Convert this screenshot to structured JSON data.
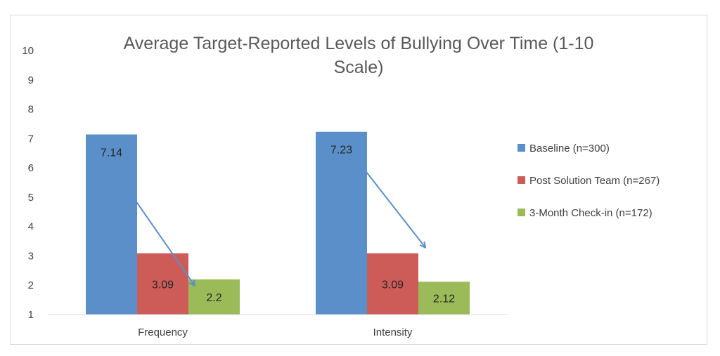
{
  "chart_data": {
    "type": "bar",
    "title_lines": [
      "Average Target-Reported Levels of Bullying Over Time (1-10",
      "Scale)"
    ],
    "categories": [
      "Frequency",
      "Intensity"
    ],
    "series": [
      {
        "name": "Baseline (n=300)",
        "color": "#5b8fc9",
        "values": [
          7.14,
          7.23
        ],
        "labels": [
          "7.14",
          "7.23"
        ]
      },
      {
        "name": "Post Solution Team (n=267)",
        "color": "#cd5c58",
        "values": [
          3.09,
          3.09
        ],
        "labels": [
          "3.09",
          "3.09"
        ]
      },
      {
        "name": "3-Month Check-in (n=172)",
        "color": "#9bbb59",
        "values": [
          2.2,
          2.12
        ],
        "labels": [
          "2.2",
          "2.12"
        ]
      }
    ],
    "ylim": [
      1,
      10
    ],
    "yticks": [
      "1",
      "2",
      "3",
      "4",
      "5",
      "6",
      "7",
      "8",
      "9",
      "10"
    ],
    "xlabel": "",
    "ylabel": "",
    "grid": false,
    "legend_position": "right",
    "annotations": [
      {
        "type": "arrow",
        "category": "Frequency",
        "color": "#5b8fc9",
        "from_y": 5.0,
        "to_y": 2.0
      },
      {
        "type": "arrow",
        "category": "Intensity",
        "color": "#5b8fc9",
        "from_y": 6.0,
        "to_y": 3.3
      }
    ]
  }
}
